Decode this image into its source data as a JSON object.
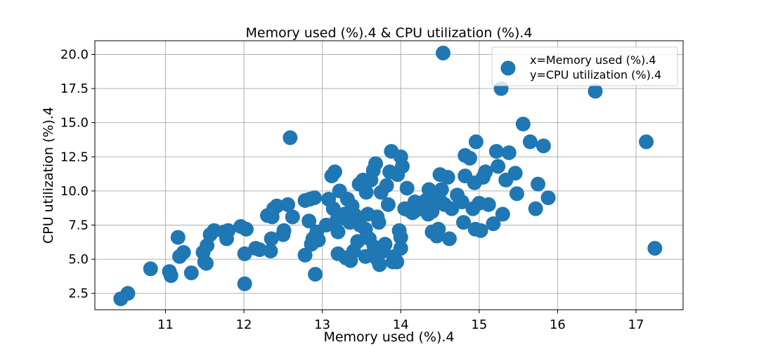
{
  "chart_data": {
    "type": "scatter",
    "title": "Memory used  (%).4 & CPU utilization (%).4",
    "xlabel": "Memory used  (%).4",
    "ylabel": "CPU utilization (%).4",
    "xlim": [
      10.1,
      17.6
    ],
    "ylim": [
      1.3,
      21.0
    ],
    "xticks": [
      11,
      12,
      13,
      14,
      15,
      16,
      17
    ],
    "yticks": [
      2.5,
      5.0,
      7.5,
      10.0,
      12.5,
      15.0,
      17.5,
      20.0
    ],
    "xtick_labels": [
      "11",
      "12",
      "13",
      "14",
      "15",
      "16",
      "17"
    ],
    "ytick_labels": [
      "2.5",
      "5.0",
      "7.5",
      "10.0",
      "12.5",
      "15.0",
      "17.5",
      "20.0"
    ],
    "grid": true,
    "legend": {
      "placement": "top-right",
      "lines": [
        "x=Memory used  (%).4",
        "y=CPU utilization (%).4"
      ]
    },
    "marker_color": "#1f77b4",
    "series": [
      {
        "points": [
          [
            10.43,
            2.1
          ],
          [
            10.52,
            2.5
          ],
          [
            10.81,
            4.3
          ],
          [
            11.05,
            4.1
          ],
          [
            11.07,
            3.8
          ],
          [
            11.16,
            6.6
          ],
          [
            11.18,
            5.2
          ],
          [
            11.23,
            5.5
          ],
          [
            11.33,
            4.0
          ],
          [
            11.48,
            5.5
          ],
          [
            11.5,
            4.8
          ],
          [
            11.52,
            4.7
          ],
          [
            11.53,
            6.0
          ],
          [
            11.57,
            6.8
          ],
          [
            11.62,
            7.1
          ],
          [
            11.75,
            7.0
          ],
          [
            11.78,
            6.5
          ],
          [
            11.8,
            7.1
          ],
          [
            11.96,
            7.4
          ],
          [
            12.01,
            5.4
          ],
          [
            12.01,
            3.2
          ],
          [
            12.03,
            7.2
          ],
          [
            12.15,
            5.8
          ],
          [
            12.2,
            5.7
          ],
          [
            12.3,
            8.2
          ],
          [
            12.34,
            5.6
          ],
          [
            12.35,
            6.5
          ],
          [
            12.36,
            8.1
          ],
          [
            12.38,
            8.7
          ],
          [
            12.42,
            8.9
          ],
          [
            12.5,
            6.8
          ],
          [
            12.51,
            7.1
          ],
          [
            12.56,
            9.0
          ],
          [
            12.59,
            13.9
          ],
          [
            12.62,
            8.1
          ],
          [
            12.78,
            9.3
          ],
          [
            12.78,
            5.3
          ],
          [
            12.83,
            7.8
          ],
          [
            12.84,
            9.4
          ],
          [
            12.86,
            6.1
          ],
          [
            12.88,
            6.5
          ],
          [
            12.9,
            9.5
          ],
          [
            12.91,
            3.9
          ],
          [
            12.93,
            7.0
          ],
          [
            12.95,
            6.4
          ],
          [
            13.05,
            7.5
          ],
          [
            13.08,
            9.4
          ],
          [
            13.12,
            11.1
          ],
          [
            13.14,
            8.7
          ],
          [
            13.16,
            11.4
          ],
          [
            13.18,
            7.8
          ],
          [
            13.2,
            7.0
          ],
          [
            13.2,
            5.4
          ],
          [
            13.22,
            10.0
          ],
          [
            13.28,
            8.3
          ],
          [
            13.3,
            5.1
          ],
          [
            13.32,
            9.4
          ],
          [
            13.35,
            7.7
          ],
          [
            13.36,
            4.9
          ],
          [
            13.38,
            8.9
          ],
          [
            13.4,
            5.6
          ],
          [
            13.42,
            8.2
          ],
          [
            13.45,
            6.3
          ],
          [
            13.47,
            10.5
          ],
          [
            13.48,
            7.5
          ],
          [
            13.52,
            10.8
          ],
          [
            13.55,
            7.2
          ],
          [
            13.55,
            5.2
          ],
          [
            13.56,
            9.9
          ],
          [
            13.58,
            8.3
          ],
          [
            13.6,
            6.5
          ],
          [
            13.62,
            10.8
          ],
          [
            13.65,
            11.5
          ],
          [
            13.66,
            5.9
          ],
          [
            13.68,
            12.0
          ],
          [
            13.7,
            8.1
          ],
          [
            13.7,
            5.0
          ],
          [
            13.72,
            7.7
          ],
          [
            13.73,
            4.6
          ],
          [
            13.75,
            9.9
          ],
          [
            13.78,
            5.6
          ],
          [
            13.8,
            6.1
          ],
          [
            13.82,
            10.4
          ],
          [
            13.84,
            9.0
          ],
          [
            13.86,
            11.4
          ],
          [
            13.88,
            12.9
          ],
          [
            13.9,
            4.8
          ],
          [
            13.92,
            5.2
          ],
          [
            13.95,
            4.8
          ],
          [
            13.96,
            11.2
          ],
          [
            13.98,
            7.1
          ],
          [
            14.0,
            6.6
          ],
          [
            14.0,
            5.8
          ],
          [
            14.0,
            12.5
          ],
          [
            14.02,
            11.8
          ],
          [
            14.05,
            8.7
          ],
          [
            14.08,
            10.2
          ],
          [
            14.1,
            8.6
          ],
          [
            14.15,
            8.4
          ],
          [
            14.18,
            9.2
          ],
          [
            14.2,
            8.6
          ],
          [
            14.25,
            9.1
          ],
          [
            14.28,
            8.9
          ],
          [
            14.3,
            9.1
          ],
          [
            14.32,
            9.3
          ],
          [
            14.35,
            8.3
          ],
          [
            14.36,
            10.1
          ],
          [
            14.38,
            9.6
          ],
          [
            14.4,
            7.0
          ],
          [
            14.4,
            8.5
          ],
          [
            14.42,
            9.4
          ],
          [
            14.45,
            9.8
          ],
          [
            14.46,
            6.7
          ],
          [
            14.48,
            7.2
          ],
          [
            14.5,
            11.2
          ],
          [
            14.5,
            9.3
          ],
          [
            14.52,
            10.1
          ],
          [
            14.54,
            20.1
          ],
          [
            14.56,
            9.0
          ],
          [
            14.6,
            11.0
          ],
          [
            14.62,
            6.5
          ],
          [
            14.65,
            8.7
          ],
          [
            14.72,
            9.7
          ],
          [
            14.78,
            9.2
          ],
          [
            14.8,
            7.7
          ],
          [
            14.82,
            12.6
          ],
          [
            14.82,
            11.1
          ],
          [
            14.88,
            12.4
          ],
          [
            14.92,
            8.7
          ],
          [
            14.94,
            10.6
          ],
          [
            14.95,
            7.2
          ],
          [
            14.96,
            13.6
          ],
          [
            15.0,
            9.1
          ],
          [
            15.02,
            7.1
          ],
          [
            15.05,
            11.0
          ],
          [
            15.08,
            11.4
          ],
          [
            15.12,
            9.0
          ],
          [
            15.18,
            7.6
          ],
          [
            15.22,
            12.9
          ],
          [
            15.24,
            11.8
          ],
          [
            15.28,
            17.5
          ],
          [
            15.3,
            8.3
          ],
          [
            15.34,
            10.8
          ],
          [
            15.38,
            12.8
          ],
          [
            15.46,
            11.3
          ],
          [
            15.48,
            9.8
          ],
          [
            15.56,
            14.9
          ],
          [
            15.65,
            13.6
          ],
          [
            15.72,
            8.7
          ],
          [
            15.75,
            10.5
          ],
          [
            15.82,
            13.3
          ],
          [
            15.88,
            9.5
          ],
          [
            16.48,
            17.3
          ],
          [
            17.13,
            13.6
          ],
          [
            17.24,
            5.8
          ]
        ]
      }
    ]
  }
}
